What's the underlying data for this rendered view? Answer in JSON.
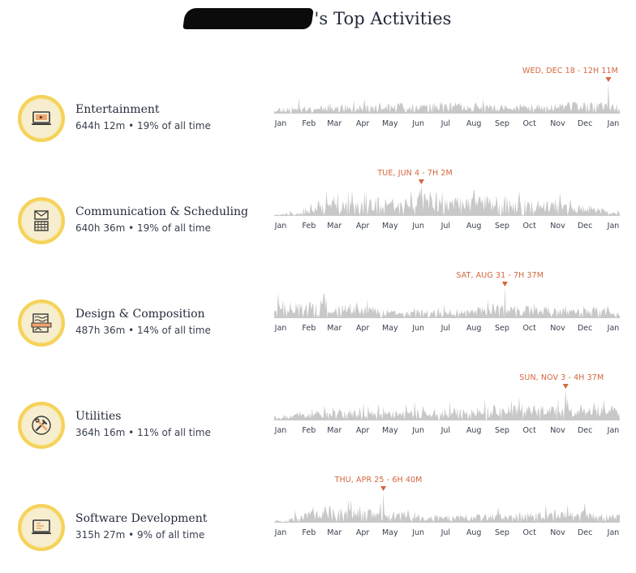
{
  "page": {
    "title_suffix": "'s Top Activities"
  },
  "colors": {
    "badge_ring": "#f5d25a",
    "badge_fill": "#f6eecf",
    "spark_fill": "#c8c8c8",
    "peak_marker": "#d4663d"
  },
  "month_labels": [
    "Jan",
    "Feb",
    "Mar",
    "Apr",
    "May",
    "Jun",
    "Jul",
    "Aug",
    "Sep",
    "Oct",
    "Nov",
    "Dec",
    "Jan"
  ],
  "chart_data": [
    {
      "type": "area",
      "category": "Entertainment",
      "icon": "laptop-play-icon",
      "total": "644h 12m",
      "share_text": "19% of all time",
      "peak_label": "WED, DEC 18 - 12H 11M",
      "peak_day": 352,
      "peak_value": 1.0,
      "activity_level": [
        0.18,
        0.22,
        0.2,
        0.24,
        0.25,
        0.22,
        0.23,
        0.26,
        0.28,
        0.25,
        0.27,
        0.3,
        0.28,
        0.24,
        0.23,
        0.22,
        0.2,
        0.24,
        0.26,
        0.28,
        0.3,
        0.27,
        0.28,
        0.26
      ],
      "seed": 11
    },
    {
      "type": "area",
      "category": "Communication & Scheduling",
      "icon": "mail-calendar-icon",
      "total": "640h 36m",
      "share_text": "19% of all time",
      "peak_label": "TUE, JUN 4 - 7H 2M",
      "peak_day": 155,
      "peak_value": 1.0,
      "activity_level": [
        0.05,
        0.08,
        0.22,
        0.35,
        0.4,
        0.42,
        0.45,
        0.48,
        0.5,
        0.52,
        0.55,
        0.45,
        0.5,
        0.48,
        0.52,
        0.5,
        0.45,
        0.42,
        0.4,
        0.35,
        0.3,
        0.28,
        0.22,
        0.12
      ],
      "seed": 23
    },
    {
      "type": "area",
      "category": "Design & Composition",
      "icon": "drafting-icon",
      "total": "487h 36m",
      "share_text": "14% of all time",
      "peak_label": "SAT, AUG 31 - 7H 37M",
      "peak_day": 243,
      "peak_value": 1.0,
      "activity_level": [
        0.45,
        0.4,
        0.42,
        0.38,
        0.35,
        0.33,
        0.3,
        0.25,
        0.2,
        0.18,
        0.22,
        0.2,
        0.18,
        0.22,
        0.3,
        0.35,
        0.4,
        0.32,
        0.28,
        0.25,
        0.22,
        0.24,
        0.26,
        0.25
      ],
      "seed": 37
    },
    {
      "type": "area",
      "category": "Utilities",
      "icon": "tools-icon",
      "total": "364h 16m",
      "share_text": "11% of all time",
      "peak_label": "SUN, NOV 3 - 4H 37M",
      "peak_day": 307,
      "peak_value": 1.0,
      "activity_level": [
        0.15,
        0.18,
        0.2,
        0.22,
        0.24,
        0.25,
        0.26,
        0.25,
        0.24,
        0.26,
        0.28,
        0.3,
        0.32,
        0.34,
        0.36,
        0.38,
        0.4,
        0.42,
        0.38,
        0.36,
        0.34,
        0.36,
        0.38,
        0.35
      ],
      "seed": 53
    },
    {
      "type": "area",
      "category": "Software Development",
      "icon": "laptop-code-icon",
      "total": "315h 27m",
      "share_text": "9% of all time",
      "peak_label": "THU, APR 25 - 6H 40M",
      "peak_day": 115,
      "peak_value": 1.0,
      "activity_level": [
        0.05,
        0.2,
        0.3,
        0.4,
        0.38,
        0.35,
        0.36,
        0.3,
        0.28,
        0.22,
        0.15,
        0.18,
        0.2,
        0.18,
        0.22,
        0.25,
        0.22,
        0.28,
        0.3,
        0.32,
        0.28,
        0.3,
        0.25,
        0.22
      ],
      "seed": 71
    }
  ]
}
